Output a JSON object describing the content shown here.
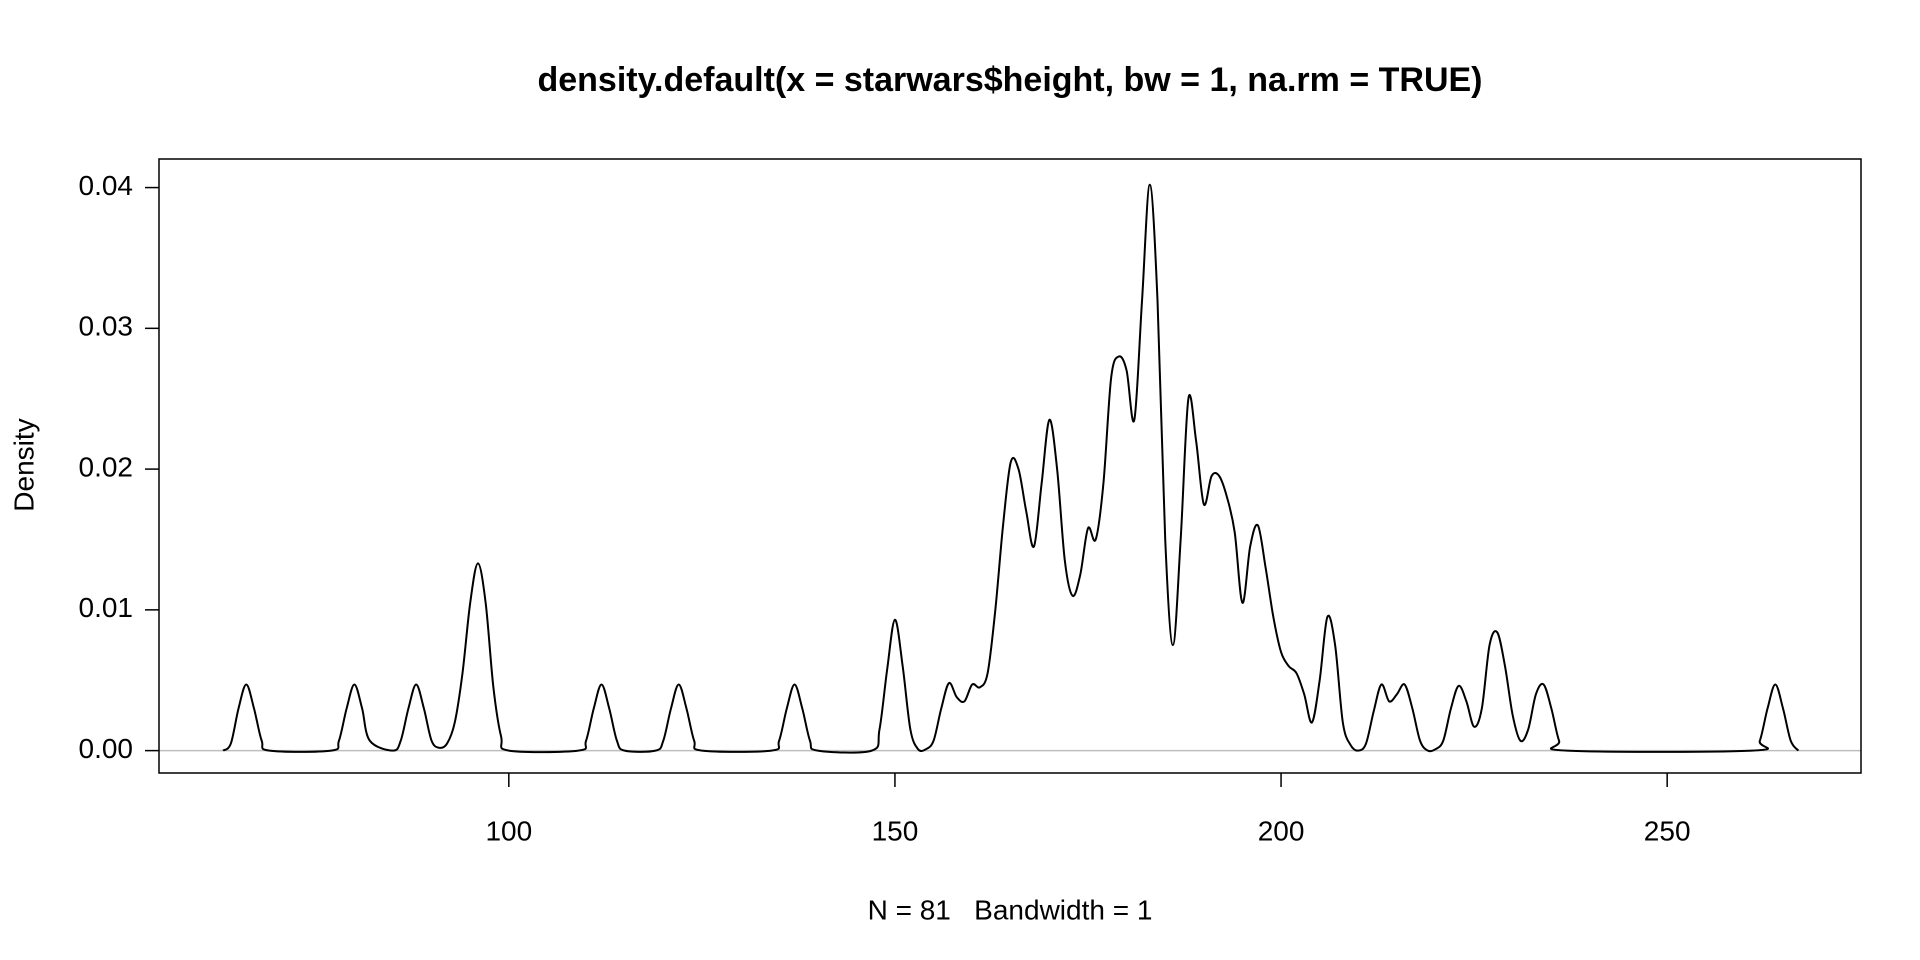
{
  "chart_data": {
    "type": "line",
    "title": "density.default(x = starwars$height, bw = 1, na.rm = TRUE)",
    "x_label": "N = 81   Bandwidth = 1",
    "y_label": "Density",
    "xlim": [
      54.7,
      275.1
    ],
    "ylim": [
      -0.00159,
      0.04203
    ],
    "xticks": [
      100,
      150,
      200,
      250
    ],
    "yticks": [
      {
        "value": 0,
        "label": "0.00"
      },
      0.01,
      0.02,
      0.03,
      0.04
    ],
    "zero_line": true,
    "grid": false,
    "color": "#000000",
    "x": [
      63,
      64,
      65,
      66,
      67,
      68,
      69,
      77,
      78,
      79,
      80,
      81,
      82,
      85,
      86,
      87,
      88,
      89,
      90,
      91,
      92,
      93,
      94,
      95,
      96,
      97,
      98,
      99,
      100,
      109,
      110,
      111,
      112,
      113,
      114,
      115,
      119,
      120,
      121,
      122,
      123,
      124,
      125,
      134,
      135,
      136,
      137,
      138,
      139,
      140,
      147,
      148,
      149,
      150,
      151,
      152,
      153,
      154,
      155,
      156,
      157,
      158,
      159,
      160,
      161,
      162,
      163,
      164,
      165,
      166,
      167,
      168,
      169,
      170,
      171,
      172,
      173,
      174,
      175,
      176,
      177,
      178,
      179,
      180,
      181,
      182,
      183,
      184,
      185,
      186,
      187,
      188,
      189,
      190,
      191,
      192,
      193,
      194,
      195,
      196,
      197,
      198,
      199,
      200,
      201,
      202,
      203,
      204,
      205,
      206,
      207,
      208,
      209,
      210,
      211,
      212,
      213,
      214,
      215,
      216,
      217,
      218,
      219,
      220,
      221,
      222,
      223,
      224,
      225,
      226,
      227,
      228,
      229,
      230,
      231,
      232,
      233,
      234,
      235,
      236,
      237,
      261,
      262,
      263,
      264,
      265,
      266,
      267
    ],
    "values": [
      0,
      0.0005,
      0.003,
      0.0047,
      0.003,
      0.0007,
      0,
      0,
      0.0007,
      0.003,
      0.0047,
      0.003,
      0.0007,
      0,
      0.0007,
      0.003,
      0.0047,
      0.003,
      0.0007,
      0.0002,
      0.0005,
      0.002,
      0.0055,
      0.0105,
      0.0133,
      0.0105,
      0.0045,
      0.001,
      0,
      0,
      0.0007,
      0.003,
      0.0047,
      0.003,
      0.0007,
      0,
      0,
      0.0007,
      0.003,
      0.0047,
      0.003,
      0.0007,
      0,
      0,
      0.0007,
      0.003,
      0.0047,
      0.003,
      0.0007,
      0,
      0,
      0.0015,
      0.0058,
      0.0093,
      0.006,
      0.0015,
      0.0001,
      0.0001,
      0.0007,
      0.003,
      0.0048,
      0.0038,
      0.0035,
      0.0047,
      0.0045,
      0.0055,
      0.01,
      0.016,
      0.0205,
      0.02,
      0.017,
      0.0145,
      0.019,
      0.0235,
      0.02,
      0.0135,
      0.011,
      0.0125,
      0.0158,
      0.015,
      0.019,
      0.0265,
      0.028,
      0.027,
      0.0235,
      0.032,
      0.0402,
      0.032,
      0.015,
      0.0075,
      0.015,
      0.025,
      0.022,
      0.0175,
      0.0195,
      0.0195,
      0.018,
      0.0155,
      0.0105,
      0.0145,
      0.016,
      0.013,
      0.0095,
      0.007,
      0.006,
      0.0055,
      0.004,
      0.002,
      0.005,
      0.0095,
      0.0075,
      0.002,
      0.0004,
      0,
      0.0005,
      0.0028,
      0.0047,
      0.0035,
      0.004,
      0.0047,
      0.003,
      0.0007,
      0,
      0.0001,
      0.0007,
      0.003,
      0.0046,
      0.0035,
      0.0017,
      0.003,
      0.0075,
      0.0084,
      0.006,
      0.0025,
      0.0007,
      0.0015,
      0.004,
      0.0047,
      0.003,
      0.0007,
      0,
      0,
      0.0007,
      0.003,
      0.0047,
      0.003,
      0.0007,
      0
    ]
  }
}
